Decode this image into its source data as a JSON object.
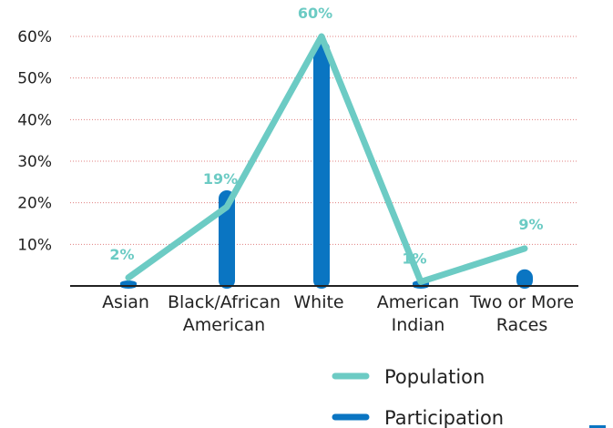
{
  "chart_data": {
    "type": "bar",
    "categories": [
      "Asian",
      "Black/African American",
      "White",
      "American Indian",
      "Two or More Races"
    ],
    "category_lines": [
      [
        "Asian"
      ],
      [
        "Black/African",
        "American"
      ],
      [
        "White"
      ],
      [
        "American",
        "Indian"
      ],
      [
        "Two or More",
        "Races"
      ]
    ],
    "series": [
      {
        "name": "Population",
        "type": "line",
        "color": "#6CCBC4",
        "values": [
          2,
          19,
          60,
          1,
          9
        ]
      },
      {
        "name": "Participation",
        "type": "bar",
        "color": "#0A75C2",
        "values": [
          1,
          23,
          59,
          0,
          4
        ]
      }
    ],
    "data_labels": [
      "2%",
      "19%",
      "60%",
      "1%",
      "9%"
    ],
    "y_ticks": [
      10,
      20,
      30,
      40,
      50,
      60
    ],
    "y_tick_labels": [
      "10%",
      "20%",
      "30%",
      "40%",
      "50%",
      "60%"
    ],
    "ylim": [
      0,
      60
    ],
    "grid": true,
    "grid_color": "#e08080",
    "label_color": "#6CCBC4",
    "legend_position": "bottom-center"
  },
  "legend": {
    "population": "Population",
    "participation": "Participation"
  },
  "accent_color": "#0A75C2"
}
